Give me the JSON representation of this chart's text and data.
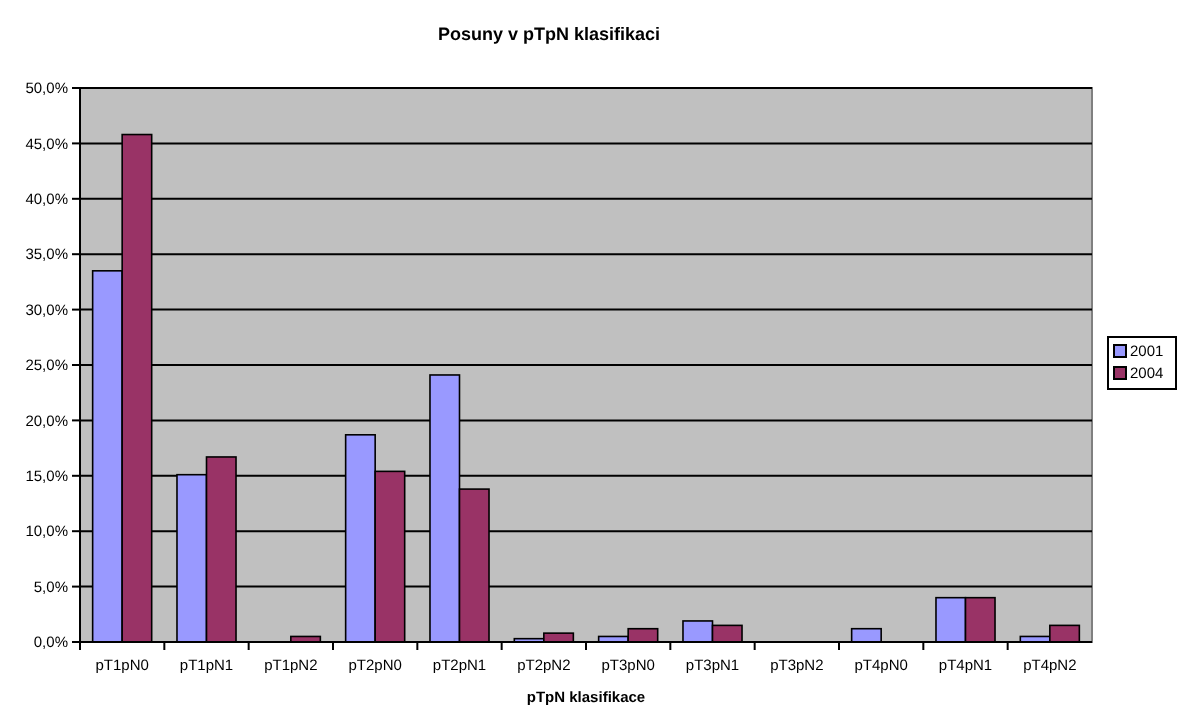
{
  "chart_data": {
    "type": "bar",
    "title": "Posuny v pTpN klasifikaci",
    "xlabel": "pTpN klasifikace",
    "categories": [
      "pT1pN0",
      "pT1pN1",
      "pT1pN2",
      "pT2pN0",
      "pT2pN1",
      "pT2pN2",
      "pT3pN0",
      "pT3pN1",
      "pT3pN2",
      "pT4pN0",
      "pT4pN1",
      "pT4pN2"
    ],
    "series": [
      {
        "name": "2001",
        "color": "#9999ff",
        "values": [
          33.5,
          15.1,
          0,
          18.7,
          24.1,
          0.3,
          0.5,
          1.9,
          0,
          1.2,
          4.0,
          0.5
        ]
      },
      {
        "name": "2004",
        "color": "#993366",
        "values": [
          45.8,
          16.7,
          0.5,
          15.4,
          13.8,
          0.8,
          1.2,
          1.5,
          0,
          0,
          4.0,
          1.5
        ]
      }
    ],
    "ylim": [
      0,
      50
    ],
    "yticks": [
      {
        "value": 0,
        "label": "0,0%"
      },
      {
        "value": 5,
        "label": "5,0%"
      },
      {
        "value": 10,
        "label": "10,0%"
      },
      {
        "value": 15,
        "label": "15,0%"
      },
      {
        "value": 20,
        "label": "20,0%"
      },
      {
        "value": 25,
        "label": "25,0%"
      },
      {
        "value": 30,
        "label": "30,0%"
      },
      {
        "value": 35,
        "label": "35,0%"
      },
      {
        "value": 40,
        "label": "40,0%"
      },
      {
        "value": 45,
        "label": "45,0%"
      },
      {
        "value": 50,
        "label": "50,0%"
      }
    ],
    "grid": "y",
    "legend": "right"
  }
}
